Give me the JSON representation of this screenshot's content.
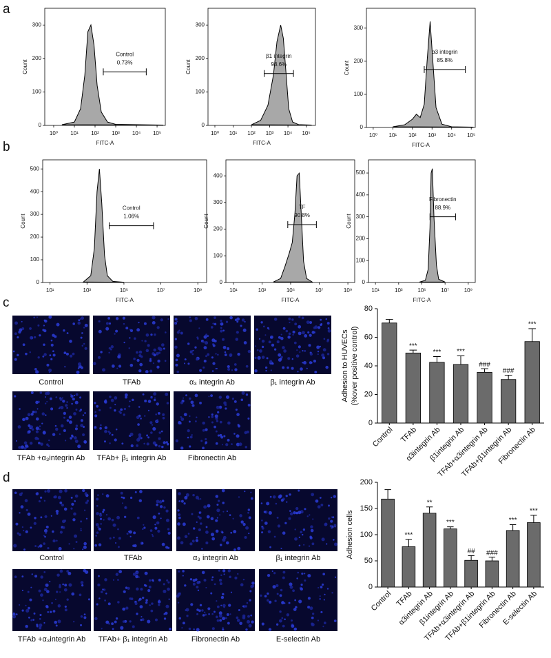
{
  "panel_labels": [
    "a",
    "b",
    "c",
    "d"
  ],
  "images": {
    "c": [
      "Control",
      "TFAb",
      "α₃ integrin Ab",
      "β₁ integrin Ab",
      "TFAb +α₃integrin Ab",
      "TFAb+ β₁ integrin Ab",
      "Fibronectin Ab"
    ],
    "d": [
      "Control",
      "TFAb",
      "α₃ integrin Ab",
      "β₁ integrin Ab",
      "TFAb +α₃integrin Ab",
      "TFAb+ β₁ integrin Ab",
      "Fibronectin Ab",
      "E-selectin Ab"
    ]
  },
  "chart_data": [
    {
      "type": "area",
      "xscale": "log",
      "color": "#a8a8a8",
      "xlabel": "FITC-A",
      "ylabel": "Count",
      "x": [
        2.5,
        10,
        20,
        32,
        45,
        63,
        89,
        126,
        200,
        400,
        1000,
        200000
      ],
      "values": [
        2,
        10,
        50,
        150,
        280,
        300,
        240,
        120,
        40,
        10,
        3,
        1
      ],
      "xlim": [
        0.37,
        250000
      ],
      "ylim": [
        0,
        350
      ],
      "xticks": [
        {
          "value": 1,
          "label": "10⁰"
        },
        {
          "value": 10,
          "label": "10¹"
        },
        {
          "value": 100,
          "label": "10²"
        },
        {
          "value": 1000,
          "label": "10³"
        },
        {
          "value": 10000,
          "label": "10⁴"
        },
        {
          "value": 100000,
          "label": "10⁵"
        }
      ],
      "yticks": [
        0,
        100,
        200,
        300
      ],
      "gate": {
        "label": "Control",
        "percent": "0.73%",
        "x": [
          250,
          30000
        ],
        "y": 160
      }
    },
    {
      "type": "area",
      "xscale": "log",
      "color": "#a8a8a8",
      "xlabel": "FITC-A",
      "ylabel": "Count",
      "x": [
        100,
        320,
        800,
        1600,
        2500,
        4000,
        5600,
        8000,
        11000,
        18000,
        40000,
        200000
      ],
      "values": [
        2,
        15,
        60,
        150,
        250,
        300,
        260,
        150,
        50,
        10,
        2,
        1
      ],
      "xlim": [
        0.42,
        320000
      ],
      "ylim": [
        0,
        350
      ],
      "xticks": [
        {
          "value": 1,
          "label": "10⁰"
        },
        {
          "value": 10,
          "label": "10¹"
        },
        {
          "value": 100,
          "label": "10²"
        },
        {
          "value": 1000,
          "label": "10³"
        },
        {
          "value": 10000,
          "label": "10⁴"
        },
        {
          "value": 100000,
          "label": "10⁵"
        }
      ],
      "yticks": [
        0,
        100,
        200,
        300
      ],
      "gate": {
        "label": "β1 integrin",
        "percent": "98.6%",
        "x": [
          500,
          20000
        ],
        "y": 155
      }
    },
    {
      "type": "area",
      "xscale": "log",
      "color": "#a8a8a8",
      "xlabel": "FITC-A",
      "ylabel": "Count",
      "x": [
        10,
        40,
        100,
        160,
        250,
        400,
        560,
        800,
        1100,
        1600,
        3200,
        10000,
        130000
      ],
      "values": [
        2,
        8,
        25,
        40,
        30,
        70,
        200,
        320,
        200,
        60,
        10,
        2,
        1
      ],
      "xlim": [
        0.45,
        160000
      ],
      "ylim": [
        0,
        360
      ],
      "xticks": [
        {
          "value": 1,
          "label": "10⁰"
        },
        {
          "value": 10,
          "label": "10¹"
        },
        {
          "value": 100,
          "label": "10²"
        },
        {
          "value": 1000,
          "label": "10³"
        },
        {
          "value": 10000,
          "label": "10⁴"
        },
        {
          "value": 100000,
          "label": "10⁵"
        }
      ],
      "yticks": [
        0,
        100,
        200,
        300
      ],
      "gate": {
        "label": "α3 integrin",
        "percent": "85.8%",
        "x": [
          400,
          50000
        ],
        "y": 175
      }
    },
    {
      "type": "area",
      "xscale": "log",
      "color": "#a8a8a8",
      "xlabel": "FITC-A",
      "ylabel": "Count",
      "x": [
        630,
        1600,
        2500,
        3500,
        4700,
        6300,
        8900,
        12600,
        25000,
        100000
      ],
      "values": [
        2,
        30,
        150,
        400,
        500,
        350,
        120,
        30,
        5,
        1
      ],
      "xlim": [
        4,
        3000000000
      ],
      "ylim": [
        0,
        540
      ],
      "xticks": [
        {
          "value": 10,
          "label": "10¹"
        },
        {
          "value": 1000,
          "label": "10³"
        },
        {
          "value": 100000,
          "label": "10⁵"
        },
        {
          "value": 10000000,
          "label": "10⁷"
        },
        {
          "value": 1000000000,
          "label": "10⁹"
        }
      ],
      "yticks": [
        0,
        100,
        200,
        300,
        400,
        500
      ],
      "gate": {
        "label": "Control",
        "percent": "1.06%",
        "x": [
          16000,
          4000000
        ],
        "y": 250
      }
    },
    {
      "type": "area",
      "xscale": "log",
      "color": "#a8a8a8",
      "xlabel": "FITC-A",
      "ylabel": "Count",
      "x": [
        6300,
        20000,
        40000,
        80000,
        130000,
        200000,
        280000,
        400000,
        560000,
        800000,
        1300000,
        3200000
      ],
      "values": [
        2,
        15,
        60,
        110,
        150,
        260,
        400,
        410,
        250,
        80,
        15,
        2
      ],
      "xlim": [
        3,
        3000000000
      ],
      "ylim": [
        0,
        460
      ],
      "xticks": [
        {
          "value": 10,
          "label": "10¹"
        },
        {
          "value": 1000,
          "label": "10³"
        },
        {
          "value": 100000,
          "label": "10⁵"
        },
        {
          "value": 10000000,
          "label": "10⁷"
        },
        {
          "value": 1000000000,
          "label": "10⁹"
        }
      ],
      "yticks": [
        0,
        100,
        200,
        300,
        400
      ],
      "gate": {
        "label": "TF",
        "percent": "90.8%",
        "x": [
          63000,
          6300000
        ],
        "y": 217
      }
    },
    {
      "type": "area",
      "xscale": "log",
      "color": "#a8a8a8",
      "xlabel": "FITC-A",
      "ylabel": "Count",
      "x": [
        63000,
        200000,
        350000,
        500000,
        630000,
        800000,
        1100000,
        1800000,
        2800000,
        10000000
      ],
      "values": [
        2,
        10,
        60,
        250,
        500,
        520,
        300,
        80,
        15,
        2
      ],
      "xlim": [
        2.5,
        4000000000
      ],
      "ylim": [
        0,
        560
      ],
      "xticks": [
        {
          "value": 10,
          "label": "10¹"
        },
        {
          "value": 1000,
          "label": "10³"
        },
        {
          "value": 100000,
          "label": "10⁵"
        },
        {
          "value": 10000000,
          "label": "10⁷"
        },
        {
          "value": 1000000000,
          "label": "10⁹"
        }
      ],
      "yticks": [
        0,
        100,
        200,
        300,
        400,
        500
      ],
      "gate": {
        "label": "Fibronectin",
        "percent": "88.9%",
        "x": [
          500000,
          80000000
        ],
        "y": 300
      }
    },
    {
      "type": "bar",
      "color": "#6b6b6b",
      "ylabel": [
        "Adhesion to HUVECs",
        "(%over positive control)"
      ],
      "categories": [
        "Control",
        "TFAb",
        "α3integrin Ab",
        "β1integrin Ab",
        "TFAb+α3integrin Ab",
        "TFAb+β1integrin Ab",
        "Fibronectin Ab"
      ],
      "values": [
        70,
        49,
        42.5,
        41,
        35.5,
        30.5,
        57
      ],
      "errors": [
        2.5,
        2,
        4,
        6,
        2.5,
        3,
        9
      ],
      "significance": [
        null,
        "***",
        "***",
        "***",
        "###",
        "###",
        "***"
      ],
      "ylim": [
        0,
        80
      ],
      "yticks": [
        0,
        20,
        40,
        60,
        80
      ]
    },
    {
      "type": "bar",
      "color": "#6b6b6b",
      "ylabel": [
        "Adhesion cells"
      ],
      "categories": [
        "Control",
        "TFAb",
        "α3integrin Ab",
        "β1integrin Ab",
        "TFAb+α3integrin Ab",
        "TFAb+β1integrin Ab",
        "Fibronectin Ab",
        "E-selectin Ab"
      ],
      "values": [
        168,
        77,
        141,
        111,
        51,
        50,
        108,
        123
      ],
      "errors": [
        18,
        14,
        12,
        4,
        9,
        7,
        11,
        14
      ],
      "significance": [
        null,
        "***",
        "**",
        "***",
        "##",
        "###",
        "***",
        "***"
      ],
      "ylim": [
        0,
        200
      ],
      "yticks": [
        0,
        50,
        100,
        150,
        200
      ]
    }
  ]
}
